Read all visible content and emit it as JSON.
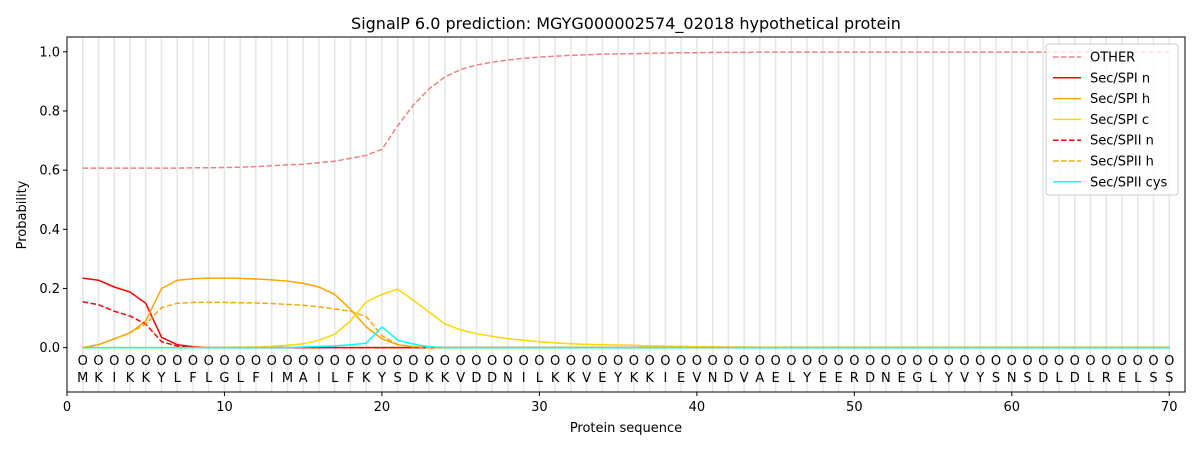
{
  "chart_data": {
    "type": "line",
    "title": "SignalP 6.0 prediction: MGYG000002574_02018 hypothetical protein",
    "xlabel": "Protein sequence",
    "ylabel": "Probability",
    "xlim": [
      0,
      71
    ],
    "ylim": [
      -0.15,
      1.05
    ],
    "xticks": [
      0,
      10,
      20,
      30,
      40,
      50,
      60,
      70
    ],
    "yticks": [
      0.0,
      0.2,
      0.4,
      0.6,
      0.8,
      1.0
    ],
    "ytick_labels": [
      "0.0",
      "0.2",
      "0.4",
      "0.6",
      "0.8",
      "1.0"
    ],
    "legend_position": "top-right",
    "sequence": [
      "M",
      "K",
      "I",
      "K",
      "K",
      "Y",
      "L",
      "F",
      "L",
      "G",
      "L",
      "F",
      "I",
      "M",
      "A",
      "I",
      "L",
      "F",
      "K",
      "Y",
      "S",
      "D",
      "K",
      "K",
      "V",
      "D",
      "D",
      "N",
      "I",
      "L",
      "K",
      "K",
      "V",
      "E",
      "Y",
      "K",
      "K",
      "I",
      "E",
      "V",
      "N",
      "D",
      "V",
      "A",
      "E",
      "L",
      "Y",
      "E",
      "E",
      "R",
      "D",
      "N",
      "E",
      "G",
      "L",
      "Y",
      "V",
      "Y",
      "S",
      "N",
      "S",
      "D",
      "L",
      "D",
      "L",
      "R",
      "E",
      "L",
      "S",
      "S"
    ],
    "position_marker": "O",
    "series": [
      {
        "name": "OTHER",
        "color": "#f08080",
        "dash": true,
        "values": [
          0.607,
          0.607,
          0.607,
          0.607,
          0.607,
          0.607,
          0.607,
          0.608,
          0.608,
          0.609,
          0.61,
          0.612,
          0.615,
          0.618,
          0.62,
          0.625,
          0.63,
          0.64,
          0.65,
          0.67,
          0.75,
          0.82,
          0.875,
          0.915,
          0.94,
          0.955,
          0.965,
          0.972,
          0.978,
          0.982,
          0.985,
          0.988,
          0.99,
          0.992,
          0.993,
          0.994,
          0.995,
          0.996,
          0.997,
          0.997,
          0.998,
          0.998,
          0.998,
          0.999,
          0.999,
          0.999,
          0.999,
          0.999,
          0.999,
          0.999,
          0.999,
          0.999,
          0.999,
          0.999,
          0.999,
          0.999,
          0.999,
          0.999,
          0.999,
          0.999,
          0.999,
          0.999,
          0.999,
          0.999,
          0.999,
          0.999,
          0.999,
          0.999,
          0.999,
          0.999
        ]
      },
      {
        "name": "Sec/SPI n",
        "color": "#ff0000",
        "dash": false,
        "values": [
          0.235,
          0.228,
          0.205,
          0.188,
          0.15,
          0.035,
          0.01,
          0.003,
          0,
          0,
          0,
          0,
          0,
          0,
          0,
          0,
          0,
          0,
          0,
          0,
          0,
          0,
          0,
          0,
          0,
          0,
          0,
          0,
          0,
          0,
          0,
          0,
          0,
          0,
          0,
          0,
          0,
          0,
          0,
          0,
          0,
          0,
          0,
          0,
          0,
          0,
          0,
          0,
          0,
          0,
          0,
          0,
          0,
          0,
          0,
          0,
          0,
          0,
          0,
          0,
          0,
          0,
          0,
          0,
          0,
          0,
          0,
          0,
          0,
          0
        ]
      },
      {
        "name": "Sec/SPI h",
        "color": "#ffa500",
        "dash": false,
        "values": [
          0,
          0.01,
          0.03,
          0.05,
          0.09,
          0.2,
          0.228,
          0.233,
          0.235,
          0.235,
          0.234,
          0.232,
          0.229,
          0.225,
          0.217,
          0.205,
          0.18,
          0.13,
          0.07,
          0.03,
          0.01,
          0.002,
          0,
          0,
          0,
          0,
          0,
          0,
          0,
          0,
          0,
          0,
          0,
          0,
          0,
          0,
          0,
          0,
          0,
          0,
          0,
          0,
          0,
          0,
          0,
          0,
          0,
          0,
          0,
          0,
          0,
          0,
          0,
          0,
          0,
          0,
          0,
          0,
          0,
          0,
          0,
          0,
          0,
          0,
          0,
          0,
          0,
          0,
          0,
          0
        ]
      },
      {
        "name": "Sec/SPI c",
        "color": "#ffd700",
        "dash": false,
        "values": [
          0,
          0,
          0,
          0,
          0,
          0,
          0,
          0,
          0,
          0,
          0.001,
          0.002,
          0.004,
          0.008,
          0.013,
          0.025,
          0.045,
          0.09,
          0.155,
          0.18,
          0.198,
          0.16,
          0.12,
          0.08,
          0.06,
          0.047,
          0.038,
          0.03,
          0.025,
          0.02,
          0.016,
          0.013,
          0.011,
          0.01,
          0.009,
          0.008,
          0.006,
          0.005,
          0.004,
          0.003,
          0.003,
          0.002,
          0.002,
          0.001,
          0.001,
          0,
          0,
          0,
          0,
          0,
          0,
          0,
          0,
          0,
          0,
          0,
          0,
          0,
          0,
          0,
          0,
          0,
          0,
          0,
          0,
          0,
          0,
          0,
          0,
          0
        ]
      },
      {
        "name": "Sec/SPII n",
        "color": "#ff0000",
        "dash": true,
        "values": [
          0.155,
          0.145,
          0.123,
          0.107,
          0.08,
          0.02,
          0.005,
          0,
          0,
          0,
          0,
          0,
          0,
          0,
          0,
          0,
          0,
          0,
          0,
          0,
          0,
          0,
          0,
          0,
          0,
          0,
          0,
          0,
          0,
          0,
          0,
          0,
          0,
          0,
          0,
          0,
          0,
          0,
          0,
          0,
          0,
          0,
          0,
          0,
          0,
          0,
          0,
          0,
          0,
          0,
          0,
          0,
          0,
          0,
          0,
          0,
          0,
          0,
          0,
          0,
          0,
          0,
          0,
          0,
          0,
          0,
          0,
          0,
          0,
          0
        ]
      },
      {
        "name": "Sec/SPII h",
        "color": "#ffa500",
        "dash": true,
        "values": [
          0,
          0.01,
          0.03,
          0.05,
          0.08,
          0.135,
          0.15,
          0.153,
          0.153,
          0.153,
          0.152,
          0.151,
          0.149,
          0.146,
          0.143,
          0.138,
          0.131,
          0.123,
          0.105,
          0.04,
          0.01,
          0.003,
          0,
          0,
          0,
          0,
          0,
          0,
          0,
          0,
          0,
          0,
          0,
          0,
          0,
          0,
          0,
          0,
          0,
          0,
          0,
          0,
          0,
          0,
          0,
          0,
          0,
          0,
          0,
          0,
          0,
          0,
          0,
          0,
          0,
          0,
          0,
          0,
          0,
          0,
          0,
          0,
          0,
          0,
          0,
          0,
          0,
          0,
          0,
          0
        ]
      },
      {
        "name": "Sec/SPII cys",
        "color": "#00ffff",
        "dash": false,
        "values": [
          0,
          0,
          0,
          0,
          0,
          0,
          0,
          0,
          0,
          0,
          0,
          0,
          0,
          0,
          0.002,
          0.004,
          0.006,
          0.01,
          0.015,
          0.07,
          0.025,
          0.012,
          0.003,
          0,
          0,
          0,
          0,
          0,
          0,
          0,
          0,
          0,
          0,
          0,
          0,
          0,
          0,
          0,
          0,
          0,
          0,
          0,
          0,
          0,
          0,
          0,
          0,
          0,
          0,
          0,
          0,
          0,
          0,
          0,
          0,
          0,
          0,
          0,
          0,
          0,
          0,
          0,
          0,
          0,
          0,
          0,
          0,
          0,
          0,
          0
        ]
      }
    ]
  }
}
